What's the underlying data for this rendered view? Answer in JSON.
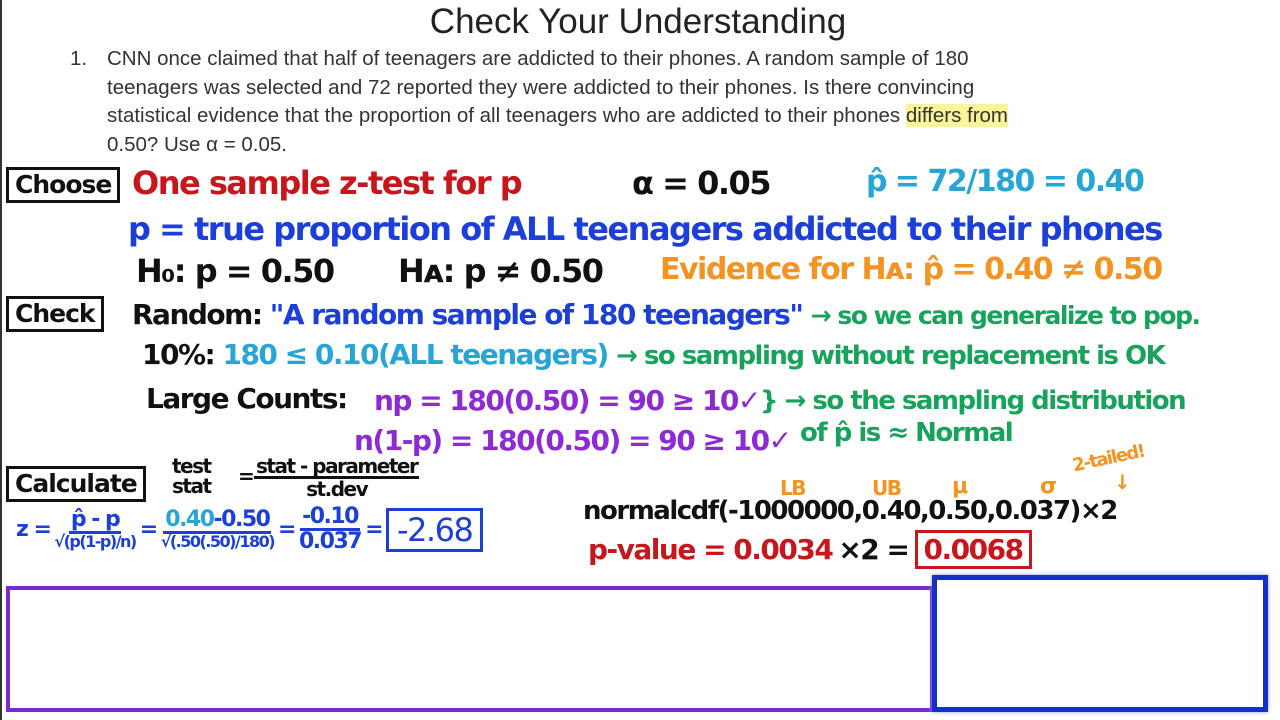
{
  "title": "Check Your Understanding",
  "question": {
    "number": "1.",
    "lines": [
      "CNN once claimed that half of teenagers are addicted to their phones. A random sample of 180",
      "teenagers was selected and 72 reported they were addicted to their phones. Is there convincing",
      "statistical evidence that the proportion of all teenagers who are addicted to their phones "
    ],
    "highlight": "differs from",
    "last_line": "0.50? Use α = 0.05."
  },
  "choose": {
    "label": "Choose",
    "test": "One sample z-test for p",
    "alpha": "α = 0.05",
    "phat": "p̂ = 72/180 = 0.40",
    "param": "p = true proportion of ALL teenagers addicted to their phones",
    "h0": "H₀: p = 0.50",
    "ha": "Hᴀ: p ≠ 0.50",
    "evidence": "Evidence for Hᴀ: p̂ = 0.40 ≠ 0.50"
  },
  "check": {
    "label": "Check",
    "random_label": "Random:",
    "random_quote": "\"A random sample of 180 teenagers\"",
    "random_note": "→ so we can generalize to pop.",
    "ten_label": "10%:",
    "ten_value": "180 ≤ 0.10(ALL teenagers)",
    "ten_note": "→ so sampling without replacement is OK",
    "large_label": "Large Counts:",
    "large_1": "np = 180(0.50) = 90 ≥ 10✓",
    "large_2": "n(1-p) = 180(0.50) = 90 ≥ 10✓",
    "large_note_1": "} → so the sampling distribution",
    "large_note_2": "of p̂ is ≈ Normal"
  },
  "calculate": {
    "label": "Calculate",
    "test_stat": "test stat",
    "eq": "=",
    "stat_num": "stat - parameter",
    "stat_den": "st.dev",
    "z": "z =",
    "z_num": "p̂ - p",
    "z_den": "√(p(1-p)/n)",
    "sub_num_a": "0.40",
    "sub_num_b": "-0.50",
    "sub_den": "√(.50(.50)/180)",
    "simp_num": "-0.10",
    "simp_den": "0.037",
    "z_result": "-2.68",
    "labels": {
      "lb": "LB",
      "ub": "UB",
      "mu": "μ",
      "sigma": "σ",
      "two_tailed": "2-tailed!",
      "arrow": "↓"
    },
    "normalcdf": "normalcdf(-1000000,0.40,0.50,0.037)×2",
    "pvalue_label": "p-value = 0.0034",
    "pvalue_times": "×2 =",
    "pvalue_result": "0.0068"
  },
  "colors": {
    "red": "#c8161d",
    "blue": "#1b3fd8",
    "cyan": "#27a6d6",
    "orange": "#f39422",
    "green": "#18a35c",
    "purple": "#8d2ad6"
  }
}
